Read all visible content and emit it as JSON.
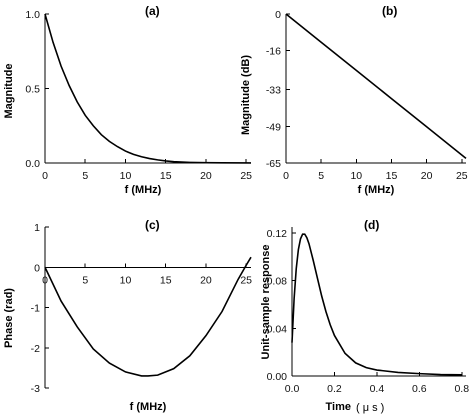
{
  "chart_data": [
    {
      "type": "line",
      "panel_label": "(a)",
      "xlabel": "f (MHz)",
      "ylabel": "Magnitude",
      "xlim": [
        0,
        25.6
      ],
      "ylim": [
        0,
        1.0
      ],
      "x_ticks": [
        "0",
        "5",
        "10",
        "15",
        "20",
        "25"
      ],
      "y_ticks": [
        "0.0",
        "0.5",
        "1.0"
      ],
      "grid": false,
      "series": [
        {
          "x": [
            0,
            1,
            2,
            3,
            4,
            5,
            6,
            7,
            8,
            9,
            10,
            11,
            12,
            13,
            14,
            15,
            16,
            17,
            18,
            20,
            22,
            25.6
          ],
          "y": [
            1.0,
            0.81,
            0.65,
            0.52,
            0.41,
            0.32,
            0.25,
            0.19,
            0.145,
            0.11,
            0.08,
            0.058,
            0.042,
            0.03,
            0.021,
            0.014,
            0.009,
            0.006,
            0.004,
            0.002,
            0.001,
            0.0005
          ]
        }
      ]
    },
    {
      "type": "line",
      "panel_label": "(b)",
      "xlabel": "f (MHz)",
      "ylabel": "Magnitude (dB)",
      "xlim": [
        0,
        25.6
      ],
      "ylim": [
        -65,
        0
      ],
      "x_ticks": [
        "0",
        "5",
        "10",
        "15",
        "20",
        "25"
      ],
      "y_ticks": [
        "0",
        "-16",
        "-33",
        "-49",
        "-65"
      ],
      "grid": false,
      "series": [
        {
          "x": [
            0,
            5,
            10,
            15,
            20,
            25,
            25.6
          ],
          "y": [
            0,
            -12.3,
            -24.6,
            -36.9,
            -49.2,
            -61.5,
            -63
          ]
        }
      ]
    },
    {
      "type": "line",
      "panel_label": "(c)",
      "xlabel": "f (MHz)",
      "ylabel": "Phase (rad)",
      "xlim": [
        0,
        25.6
      ],
      "ylim": [
        -3,
        1
      ],
      "x_ticks": [
        "0",
        "5",
        "10",
        "15",
        "20",
        "25"
      ],
      "y_ticks": [
        "1",
        "0",
        "-1",
        "-2",
        "-3"
      ],
      "grid": false,
      "series": [
        {
          "x": [
            0,
            2,
            4,
            6,
            8,
            10,
            12,
            12.8,
            14,
            16,
            18,
            20,
            22,
            24,
            25,
            25.6
          ],
          "y": [
            0,
            -0.84,
            -1.48,
            -2.03,
            -2.38,
            -2.6,
            -2.7,
            -2.7,
            -2.68,
            -2.52,
            -2.2,
            -1.7,
            -1.1,
            -0.3,
            0.05,
            0.25
          ]
        }
      ]
    },
    {
      "type": "line",
      "panel_label": "(d)",
      "xlabel": "Time",
      "xunit": "( μ s )",
      "ylabel": "Unit-sample response",
      "xlim": [
        0,
        0.82
      ],
      "ylim": [
        0,
        0.125
      ],
      "x_ticks": [
        "0.0",
        "0.2",
        "0.4",
        "0.6",
        "0.8"
      ],
      "y_ticks": [
        "0.00",
        "0.04",
        "0.08",
        "0.12"
      ],
      "grid": false,
      "series": [
        {
          "x": [
            0,
            0.01,
            0.02,
            0.03,
            0.04,
            0.05,
            0.06,
            0.07,
            0.08,
            0.1,
            0.12,
            0.14,
            0.16,
            0.18,
            0.2,
            0.25,
            0.3,
            0.35,
            0.4,
            0.5,
            0.6,
            0.7,
            0.8
          ],
          "y": [
            0.028,
            0.065,
            0.09,
            0.106,
            0.115,
            0.119,
            0.119,
            0.116,
            0.111,
            0.097,
            0.082,
            0.067,
            0.054,
            0.043,
            0.034,
            0.019,
            0.011,
            0.007,
            0.005,
            0.003,
            0.002,
            0.0012,
            0.001
          ]
        }
      ]
    }
  ]
}
